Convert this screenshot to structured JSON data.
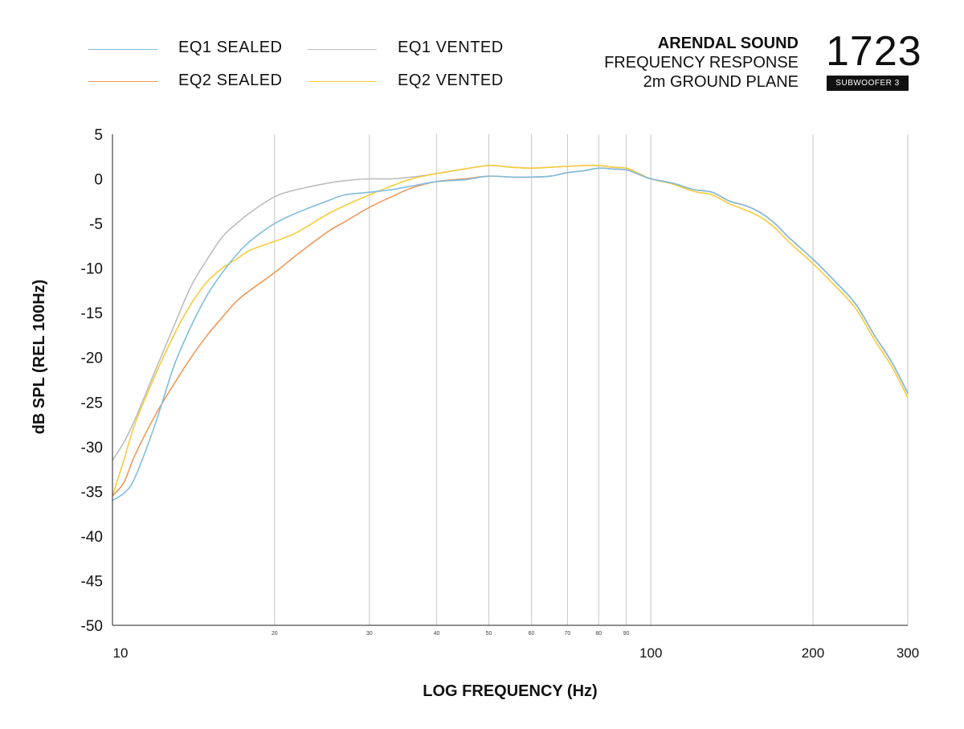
{
  "legend": {
    "eq1_sealed": "EQ1 SEALED",
    "eq1_vented": "EQ1 VENTED",
    "eq2_sealed": "EQ2 SEALED",
    "eq2_vented": "EQ2 VENTED"
  },
  "brand": {
    "name": "ARENDAL SOUND",
    "line1": "FREQUENCY RESPONSE",
    "line2": "2m GROUND PLANE",
    "model_number": "1723",
    "model_name": "SUBWOOFER 3"
  },
  "colors": {
    "eq1_sealed": "#7fbde0",
    "eq1_vented": "#bdbdbd",
    "eq2_sealed": "#ef9a5a",
    "eq2_vented": "#f7cc3a",
    "grid": "#cfcfcf",
    "axis": "#222222"
  },
  "chart_data": {
    "type": "line",
    "xlabel": "LOG FREQUENCY (Hz)",
    "ylabel": "dB SPL (REL 100Hz)",
    "xscale": "log",
    "xlim": [
      10,
      300
    ],
    "ylim": [
      -50,
      5
    ],
    "grid": "vertical",
    "legend_position": "top-left",
    "y_ticks": [
      "5",
      "0",
      "-5",
      "-10",
      "-15",
      "-20",
      "-25",
      "-30",
      "-35",
      "-40",
      "-45",
      "-50"
    ],
    "x_ticks_major": [
      {
        "value": 10,
        "label": "10"
      },
      {
        "value": 100,
        "label": "100"
      },
      {
        "value": 200,
        "label": "200"
      },
      {
        "value": 300,
        "label": "300"
      }
    ],
    "x_ticks_minor": [
      {
        "value": 20,
        "label": "20"
      },
      {
        "value": 30,
        "label": "30"
      },
      {
        "value": 40,
        "label": "40"
      },
      {
        "value": 50,
        "label": "50"
      },
      {
        "value": 60,
        "label": "60"
      },
      {
        "value": 70,
        "label": "70"
      },
      {
        "value": 80,
        "label": "80"
      },
      {
        "value": 90,
        "label": "90"
      }
    ],
    "series": [
      {
        "name": "EQ1 SEALED",
        "key": "eq1_sealed",
        "x": [
          10,
          10.5,
          11,
          12,
          13,
          14,
          15,
          16,
          17,
          18,
          20,
          22,
          25,
          27,
          30,
          33,
          36,
          40,
          45,
          50,
          55,
          60,
          65,
          70,
          75,
          80,
          85,
          90,
          95,
          100,
          110,
          120,
          130,
          140,
          150,
          160,
          170,
          180,
          200,
          220,
          240,
          260,
          280,
          300
        ],
        "y": [
          -36.0,
          -35.2,
          -33.5,
          -27.5,
          -21.0,
          -16.5,
          -13.0,
          -10.5,
          -8.5,
          -7.0,
          -5.0,
          -3.8,
          -2.5,
          -1.8,
          -1.5,
          -1.2,
          -0.8,
          -0.3,
          -0.1,
          0.3,
          0.2,
          0.2,
          0.3,
          0.7,
          0.9,
          1.2,
          1.1,
          1.0,
          0.5,
          0.0,
          -0.5,
          -1.2,
          -1.5,
          -2.5,
          -3.0,
          -3.8,
          -5.0,
          -6.5,
          -9.0,
          -11.5,
          -14.0,
          -17.5,
          -20.5,
          -24.0
        ]
      },
      {
        "name": "EQ1 VENTED",
        "key": "eq1_vented",
        "x": [
          10,
          10.5,
          11,
          12,
          13,
          14,
          15,
          16,
          17,
          18,
          20,
          22,
          25,
          27,
          30,
          33,
          36,
          40,
          45,
          50,
          55,
          60,
          65,
          70,
          75,
          80,
          85,
          90,
          95,
          100,
          110,
          120,
          130,
          140,
          150,
          160,
          170,
          180,
          200,
          220,
          240,
          260,
          280,
          300
        ],
        "y": [
          -31.5,
          -29.5,
          -27.0,
          -21.5,
          -16.5,
          -12.0,
          -9.0,
          -6.5,
          -5.0,
          -3.8,
          -2.0,
          -1.2,
          -0.5,
          -0.2,
          0.0,
          0.0,
          0.2,
          0.6,
          1.1,
          1.5,
          1.3,
          1.2,
          1.3,
          1.4,
          1.5,
          1.5,
          1.3,
          1.2,
          0.6,
          0.0,
          -0.5,
          -1.2,
          -1.5,
          -2.5,
          -3.0,
          -3.8,
          -5.0,
          -6.5,
          -9.0,
          -11.5,
          -14.0,
          -17.5,
          -20.5,
          -24.0
        ]
      },
      {
        "name": "EQ2 SEALED",
        "key": "eq2_sealed",
        "x": [
          10,
          10.5,
          11,
          12,
          13,
          14,
          15,
          16,
          17,
          18,
          20,
          22,
          25,
          27,
          30,
          33,
          36,
          40,
          45,
          50,
          55,
          60,
          65,
          70,
          75,
          80,
          85,
          90,
          95,
          100,
          110,
          120,
          130,
          140,
          150,
          160,
          170,
          180,
          200,
          220,
          240,
          260,
          280,
          300
        ],
        "y": [
          -35.5,
          -34.0,
          -31.0,
          -26.5,
          -23.0,
          -20.0,
          -17.5,
          -15.5,
          -13.7,
          -12.5,
          -10.5,
          -8.5,
          -6.0,
          -4.8,
          -3.2,
          -2.0,
          -1.0,
          -0.3,
          0.0,
          0.3,
          0.2,
          0.2,
          0.3,
          0.7,
          0.9,
          1.2,
          1.1,
          1.0,
          0.5,
          0.0,
          -0.5,
          -1.2,
          -1.5,
          -2.5,
          -3.0,
          -3.8,
          -5.0,
          -6.5,
          -9.0,
          -11.5,
          -14.0,
          -17.5,
          -20.5,
          -24.0
        ]
      },
      {
        "name": "EQ2 VENTED",
        "key": "eq2_vented",
        "x": [
          10,
          10.5,
          11,
          12,
          13,
          14,
          15,
          16,
          17,
          18,
          20,
          22,
          25,
          27,
          30,
          33,
          36,
          40,
          45,
          50,
          55,
          60,
          65,
          70,
          75,
          80,
          85,
          90,
          95,
          100,
          110,
          120,
          130,
          140,
          150,
          160,
          170,
          180,
          200,
          220,
          240,
          260,
          280,
          300
        ],
        "y": [
          -35.5,
          -31.5,
          -27.5,
          -22.0,
          -17.5,
          -14.0,
          -11.5,
          -10.0,
          -9.0,
          -8.0,
          -7.0,
          -6.0,
          -4.0,
          -3.0,
          -1.8,
          -0.8,
          0.0,
          0.6,
          1.1,
          1.5,
          1.3,
          1.2,
          1.3,
          1.4,
          1.5,
          1.5,
          1.3,
          1.2,
          0.6,
          0.0,
          -0.6,
          -1.4,
          -1.8,
          -2.8,
          -3.5,
          -4.3,
          -5.5,
          -7.0,
          -9.5,
          -12.0,
          -14.5,
          -18.0,
          -21.0,
          -24.5
        ]
      }
    ]
  }
}
